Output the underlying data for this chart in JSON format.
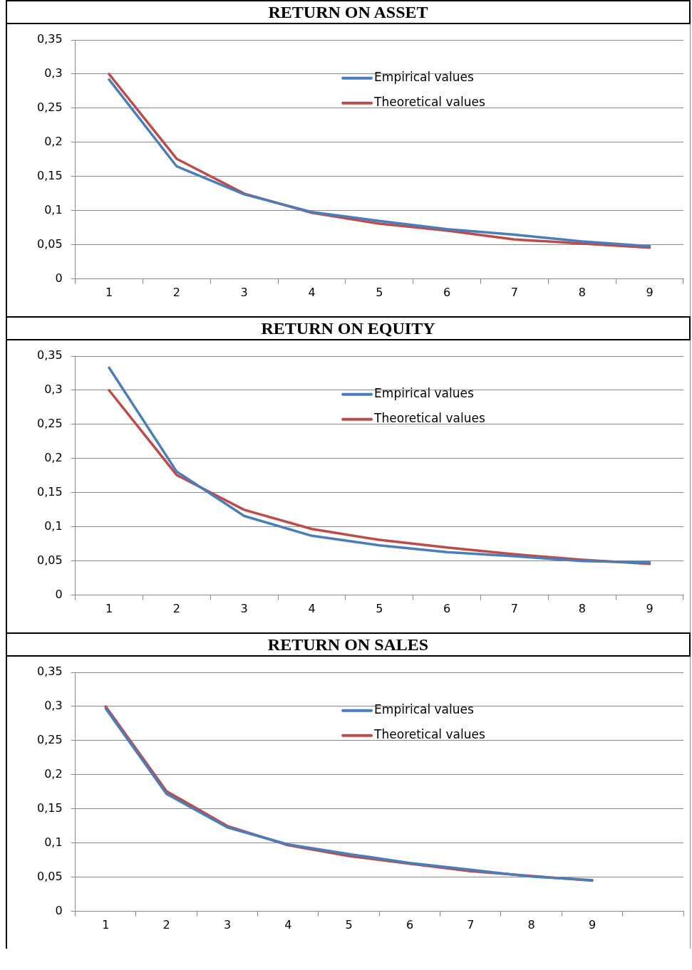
{
  "chart_data": [
    {
      "type": "line",
      "title": "RETURN ON ASSET",
      "categories": [
        "1",
        "2",
        "3",
        "4",
        "5",
        "6",
        "7",
        "8",
        "9"
      ],
      "series": [
        {
          "name": "Empirical values",
          "color": "#4a7ebb",
          "values": [
            0.292,
            0.165,
            0.124,
            0.098,
            0.085,
            0.073,
            0.065,
            0.055,
            0.048
          ]
        },
        {
          "name": "Theoretical values",
          "color": "#be4b48",
          "values": [
            0.3,
            0.176,
            0.125,
            0.097,
            0.081,
            0.071,
            0.058,
            0.052,
            0.046
          ]
        }
      ],
      "ylim": [
        0,
        0.35
      ],
      "yticks": [
        {
          "value": 0,
          "label": "0"
        },
        {
          "value": 0.05,
          "label": "0,05"
        },
        {
          "value": 0.1,
          "label": "0,1"
        },
        {
          "value": 0.15,
          "label": "0,15"
        },
        {
          "value": 0.2,
          "label": "0,2"
        },
        {
          "value": 0.25,
          "label": "0,25"
        },
        {
          "value": 0.3,
          "label": "0,3"
        },
        {
          "value": 0.35,
          "label": "0,35"
        }
      ],
      "grid": "y",
      "legend": "top right",
      "marker": "none",
      "line_style": "solid"
    },
    {
      "type": "line",
      "title": "RETURN ON EQUITY",
      "categories": [
        "1",
        "2",
        "3",
        "4",
        "5",
        "6",
        "7",
        "8",
        "9"
      ],
      "series": [
        {
          "name": "Empirical values",
          "color": "#4a7ebb",
          "values": [
            0.333,
            0.181,
            0.116,
            0.087,
            0.073,
            0.063,
            0.057,
            0.05,
            0.048
          ]
        },
        {
          "name": "Theoretical values",
          "color": "#be4b48",
          "values": [
            0.3,
            0.176,
            0.125,
            0.097,
            0.081,
            0.07,
            0.06,
            0.052,
            0.046
          ]
        }
      ],
      "ylim": [
        0,
        0.35
      ],
      "yticks": [
        {
          "value": 0,
          "label": "0"
        },
        {
          "value": 0.05,
          "label": "0,05"
        },
        {
          "value": 0.1,
          "label": "0,1"
        },
        {
          "value": 0.15,
          "label": "0,15"
        },
        {
          "value": 0.2,
          "label": "0,2"
        },
        {
          "value": 0.25,
          "label": "0,25"
        },
        {
          "value": 0.3,
          "label": "0,3"
        },
        {
          "value": 0.35,
          "label": "0,35"
        }
      ],
      "grid": "y",
      "legend": "top right",
      "marker": "none",
      "line_style": "solid"
    },
    {
      "type": "line",
      "title": "RETURN ON SALES",
      "categories": [
        "1",
        "2",
        "3",
        "4",
        "5",
        "6",
        "7",
        "8",
        "9",
        null
      ],
      "series": [
        {
          "name": "Empirical values",
          "color": "#4a7ebb",
          "values": [
            0.297,
            0.172,
            0.123,
            0.098,
            0.084,
            0.071,
            0.061,
            0.051,
            0.046,
            null
          ]
        },
        {
          "name": "Theoretical values",
          "color": "#be4b48",
          "values": [
            0.3,
            0.176,
            0.125,
            0.097,
            0.081,
            0.07,
            0.059,
            0.052,
            0.045,
            null
          ]
        }
      ],
      "ylim": [
        0,
        0.35
      ],
      "yticks": [
        {
          "value": 0,
          "label": "0"
        },
        {
          "value": 0.05,
          "label": "0,05"
        },
        {
          "value": 0.1,
          "label": "0,1"
        },
        {
          "value": 0.15,
          "label": "0,15"
        },
        {
          "value": 0.2,
          "label": "0,2"
        },
        {
          "value": 0.25,
          "label": "0,25"
        },
        {
          "value": 0.3,
          "label": "0,3"
        },
        {
          "value": 0.35,
          "label": "0,35"
        }
      ],
      "grid": "y",
      "legend": "top right",
      "marker": "none",
      "line_style": "solid"
    }
  ]
}
